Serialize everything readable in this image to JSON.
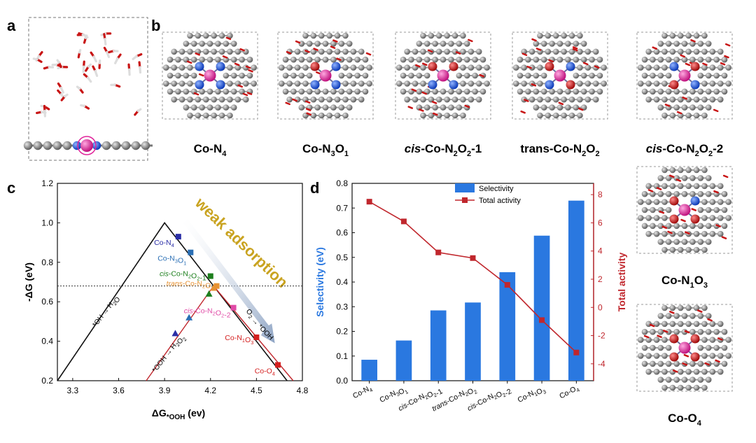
{
  "panel_labels": {
    "a": "a",
    "b": "b",
    "c": "c",
    "d": "d"
  },
  "structures": {
    "b": [
      {
        "label": "Co-N",
        "sub": "4",
        "tail": "",
        "italic_prefix": ""
      },
      {
        "label": "Co-N",
        "sub": "3",
        "mid": "O",
        "sub2": "1",
        "tail": "",
        "italic_prefix": ""
      },
      {
        "italic_prefix": "cis",
        "label": "-Co-N",
        "sub": "2",
        "mid": "O",
        "sub2": "2",
        "tail": "-1"
      },
      {
        "italic_prefix": "",
        "label": "trans-Co-N",
        "sub": "2",
        "mid": "O",
        "sub2": "2",
        "tail": ""
      },
      {
        "italic_prefix": "cis",
        "label": "-Co-N",
        "sub": "2",
        "mid": "O",
        "sub2": "2",
        "tail": "-2"
      }
    ],
    "right": [
      {
        "label": "Co-N",
        "sub": "1",
        "mid": "O",
        "sub2": "3"
      },
      {
        "label": "Co-O",
        "sub": "4"
      }
    ]
  },
  "colors": {
    "carbon": "#8a8a8a",
    "nitrogen": "#1e4fd8",
    "oxygen": "#c81414",
    "cobalt": "#e0229a",
    "hydrogen": "#f2f2f2",
    "bar": "#2a78e0",
    "line": "#c0272d",
    "axis_left": "#2a78e0",
    "axis_right": "#c0272d"
  },
  "chart_data": [
    {
      "type": "scatter",
      "panel": "c",
      "xlabel_main": "ΔG",
      "xlabel_sub": "*OOH",
      "xlabel_tail": " (ev)",
      "ylabel": "-ΔG (eV)",
      "xlim": [
        3.2,
        4.8
      ],
      "ylim": [
        0.2,
        1.2
      ],
      "xticks": [
        "3.3",
        "3.6",
        "3.9",
        "4.2",
        "4.5",
        "4.8"
      ],
      "yticks": [
        "0.2",
        "0.4",
        "0.6",
        "0.8",
        "1.0",
        "1.2"
      ],
      "dotted_line_y": 0.68,
      "volcano": {
        "left": [
          [
            3.2,
            0.2
          ],
          [
            3.9,
            1.0
          ]
        ],
        "right": [
          [
            3.9,
            1.0
          ],
          [
            4.7,
            0.2
          ]
        ]
      },
      "red_line": [
        [
          3.78,
          0.2
        ],
        [
          4.22,
          0.68
        ],
        [
          4.74,
          0.2
        ]
      ],
      "line_labels": {
        "oh": "*OH → H₂O",
        "ooh": "*OOH → H₂O₂",
        "o2": "O₂ → *OOH"
      },
      "squares": [
        {
          "x": 3.99,
          "y": 0.93,
          "color": "#2a2ea6",
          "label": "Co-N₄",
          "label_color": "#2a2ea6"
        },
        {
          "x": 4.07,
          "y": 0.85,
          "color": "#2a6fb5",
          "label": "Co-N₃O₁",
          "label_color": "#2a6fb5"
        },
        {
          "x": 4.2,
          "y": 0.73,
          "color": "#1d7f1d",
          "label": "cis-Co-N₂O₂-1",
          "label_color": "#1d7f1d"
        },
        {
          "x": 4.24,
          "y": 0.68,
          "color": "#e79233",
          "label": "trans-Co-N₂O₂",
          "label_color": "#e79233"
        },
        {
          "x": 4.35,
          "y": 0.57,
          "color": "#e04aa6",
          "label": "cis-Co-N₂O₂-2",
          "label_color": "#e04aa6"
        },
        {
          "x": 4.5,
          "y": 0.42,
          "color": "#d41f1f",
          "label": "Co-N₁O₃",
          "label_color": "#d41f1f"
        },
        {
          "x": 4.64,
          "y": 0.28,
          "color": "#d41f1f",
          "label": "Co-O₄",
          "label_color": "#d41f1f"
        }
      ],
      "triangles": [
        {
          "x": 3.97,
          "y": 0.44,
          "color": "#2a2ea6"
        },
        {
          "x": 4.06,
          "y": 0.52,
          "color": "#2a6fb5"
        },
        {
          "x": 4.19,
          "y": 0.64,
          "color": "#1d7f1d"
        },
        {
          "x": 4.22,
          "y": 0.67,
          "color": "#e79233"
        }
      ],
      "annotation": "weak adsorption"
    },
    {
      "type": "bar",
      "panel": "d",
      "categories": [
        "Co-N₄",
        "Co-N₃O₁",
        "cis-Co-N₂O₂-1",
        "trans-Co-N₂O₂",
        "cis-Co-N₂O₂-2",
        "Co-N₁O₃",
        "Co-O₄"
      ],
      "series": [
        {
          "name": "Selectivity",
          "axis": "left",
          "values": [
            0.085,
            0.163,
            0.285,
            0.317,
            0.44,
            0.588,
            0.73
          ]
        },
        {
          "name": "Total activity",
          "axis": "right",
          "values": [
            7.5,
            6.1,
            3.9,
            3.5,
            1.6,
            -0.9,
            -3.2
          ]
        }
      ],
      "ylabel": "Selectivity (eV)",
      "y2label": "Total activity",
      "ylim": [
        0,
        0.8
      ],
      "y2lim": [
        -5.2,
        8.8
      ],
      "yticks": [
        "0.0",
        "0.1",
        "0.2",
        "0.3",
        "0.4",
        "0.5",
        "0.6",
        "0.7",
        "0.8"
      ],
      "y2ticks": [
        "8",
        "6",
        "4",
        "2",
        "0",
        "-2",
        "-4"
      ],
      "legend": [
        "Selectivity",
        "Total activity"
      ]
    }
  ]
}
